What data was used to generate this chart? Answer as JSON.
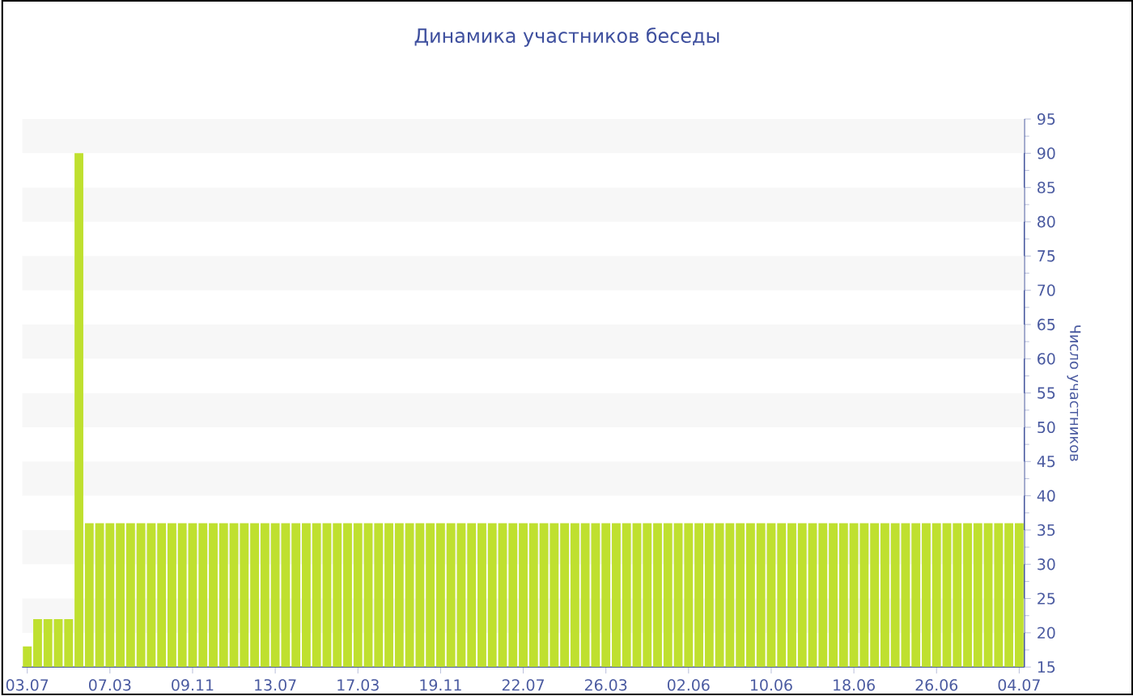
{
  "chart_data": {
    "type": "bar",
    "title": "Динамика участников беседы",
    "ylabel": "Число участников",
    "categories": [
      "03.07",
      null,
      null,
      null,
      null,
      null,
      null,
      null,
      "07.03",
      null,
      null,
      null,
      null,
      null,
      null,
      null,
      "09.11",
      null,
      null,
      null,
      null,
      null,
      null,
      null,
      "13.07",
      null,
      null,
      null,
      null,
      null,
      null,
      null,
      "17.03",
      null,
      null,
      null,
      null,
      null,
      null,
      null,
      "19.11",
      null,
      null,
      null,
      null,
      null,
      null,
      null,
      "22.07",
      null,
      null,
      null,
      null,
      null,
      null,
      null,
      "26.03",
      null,
      null,
      null,
      null,
      null,
      null,
      null,
      "02.06",
      null,
      null,
      null,
      null,
      null,
      null,
      null,
      "10.06",
      null,
      null,
      null,
      null,
      null,
      null,
      null,
      "18.06",
      null,
      null,
      null,
      null,
      null,
      null,
      null,
      "26.06",
      null,
      null,
      null,
      null,
      null,
      null,
      null,
      "04.07"
    ],
    "values": [
      18,
      22,
      22,
      22,
      22,
      90,
      36,
      36,
      36,
      36,
      36,
      36,
      36,
      36,
      36,
      36,
      36,
      36,
      36,
      36,
      36,
      36,
      36,
      36,
      36,
      36,
      36,
      36,
      36,
      36,
      36,
      36,
      36,
      36,
      36,
      36,
      36,
      36,
      36,
      36,
      36,
      36,
      36,
      36,
      36,
      36,
      36,
      36,
      36,
      36,
      36,
      36,
      36,
      36,
      36,
      36,
      36,
      36,
      36,
      36,
      36,
      36,
      36,
      36,
      36,
      36,
      36,
      36,
      36,
      36,
      36,
      36,
      36,
      36,
      36,
      36,
      36,
      36,
      36,
      36,
      36,
      36,
      36,
      36,
      36,
      36,
      36,
      36,
      36,
      36,
      36,
      36,
      36,
      36,
      36,
      36,
      36
    ],
    "color": "#bfe02f",
    "ylim": [
      15,
      95
    ],
    "yticks": [
      15,
      20,
      25,
      30,
      35,
      40,
      45,
      50,
      55,
      60,
      65,
      70,
      75,
      80,
      85,
      90,
      95
    ],
    "bands": [
      {
        "axis": "y",
        "from": 20,
        "to": 25,
        "color": "#f7f7f7"
      },
      {
        "axis": "y",
        "from": 30,
        "to": 35,
        "color": "#f7f7f7"
      },
      {
        "axis": "y",
        "from": 40,
        "to": 45,
        "color": "#f7f7f7"
      },
      {
        "axis": "y",
        "from": 50,
        "to": 55,
        "color": "#f7f7f7"
      },
      {
        "axis": "y",
        "from": 60,
        "to": 65,
        "color": "#f7f7f7"
      },
      {
        "axis": "y",
        "from": 70,
        "to": 75,
        "color": "#f7f7f7"
      },
      {
        "axis": "y",
        "from": 80,
        "to": 85,
        "color": "#f7f7f7"
      },
      {
        "axis": "y",
        "from": 90,
        "to": 95,
        "color": "#f7f7f7"
      }
    ]
  }
}
